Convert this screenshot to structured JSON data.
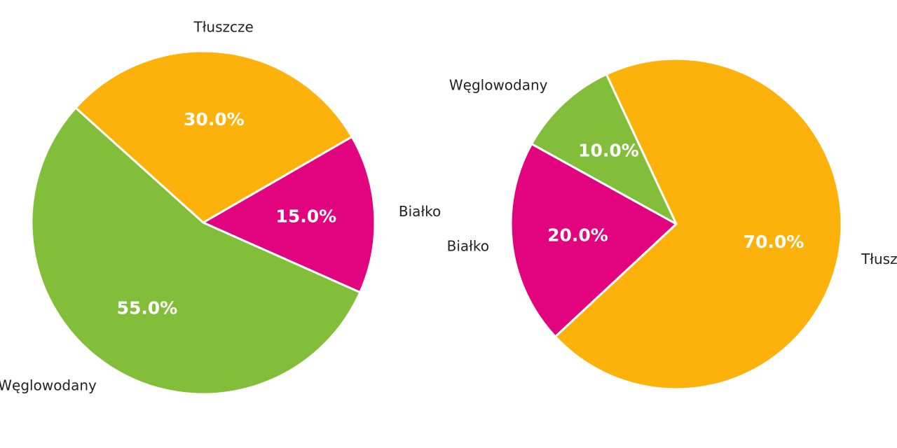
{
  "chart_data": [
    {
      "type": "pie",
      "categories": [
        "Tłuszcze",
        "Białko",
        "Węglowodany"
      ],
      "values": [
        30,
        15,
        55
      ],
      "value_labels": [
        "30.0%",
        "15.0%",
        "55.0%"
      ],
      "colors": [
        "#fcb20b",
        "#e2047f",
        "#82be3a"
      ]
    },
    {
      "type": "pie",
      "categories": [
        "Tłuszcze",
        "Białko",
        "Węglowodany"
      ],
      "values": [
        70,
        20,
        10
      ],
      "value_labels": [
        "70.0%",
        "20.0%",
        "10.0%"
      ],
      "colors": [
        "#fcb20b",
        "#e2047f",
        "#82be3a"
      ]
    }
  ]
}
